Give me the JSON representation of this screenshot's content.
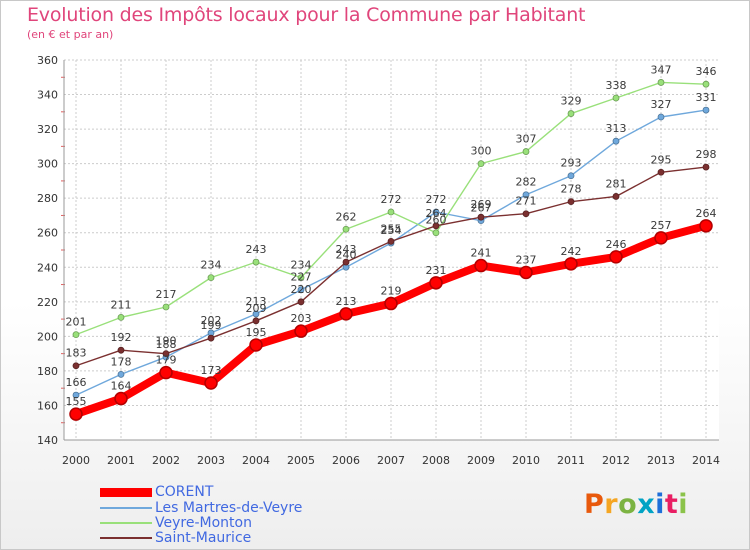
{
  "title": "Evolution des Impôts locaux pour la Commune par Habitant",
  "subtitle": "(en € et par an)",
  "logo_text": "Proxiti",
  "logo_colors": [
    "#e8590c",
    "#f5a623",
    "#7cb342",
    "#00a3c4",
    "#1e6fd9",
    "#e91e63",
    "#8bc34a"
  ],
  "chart_data": {
    "type": "line",
    "title": "Evolution des Impôts locaux pour la Commune par Habitant",
    "subtitle": "(en € et par an)",
    "xlabel": "",
    "ylabel": "",
    "ylim": [
      140,
      360
    ],
    "ytick_step": 20,
    "grid": true,
    "legend_position": "bottom-left",
    "x": [
      "2000",
      "2001",
      "2002",
      "2003",
      "2004",
      "2005",
      "2006",
      "2007",
      "2008",
      "2009",
      "2010",
      "2011",
      "2012",
      "2013",
      "2014"
    ],
    "series": [
      {
        "name": "CORENT",
        "color": "#ff0000",
        "values": [
          155,
          164,
          179,
          173,
          195,
          203,
          213,
          219,
          231,
          241,
          237,
          242,
          246,
          257,
          264
        ]
      },
      {
        "name": "Les Martres-de-Veyre",
        "color": "#6fa8dc",
        "values": [
          166,
          178,
          188,
          202,
          213,
          227,
          240,
          254,
          272,
          267,
          282,
          293,
          313,
          327,
          331
        ]
      },
      {
        "name": "Veyre-Monton",
        "color": "#99e07a",
        "values": [
          201,
          211,
          217,
          234,
          243,
          234,
          262,
          272,
          260,
          300,
          307,
          329,
          338,
          347,
          346
        ]
      },
      {
        "name": "Saint-Maurice",
        "color": "#7b3030",
        "values": [
          183,
          192,
          190,
          199,
          209,
          220,
          243,
          255,
          264,
          269,
          271,
          278,
          281,
          295,
          298
        ]
      }
    ]
  }
}
